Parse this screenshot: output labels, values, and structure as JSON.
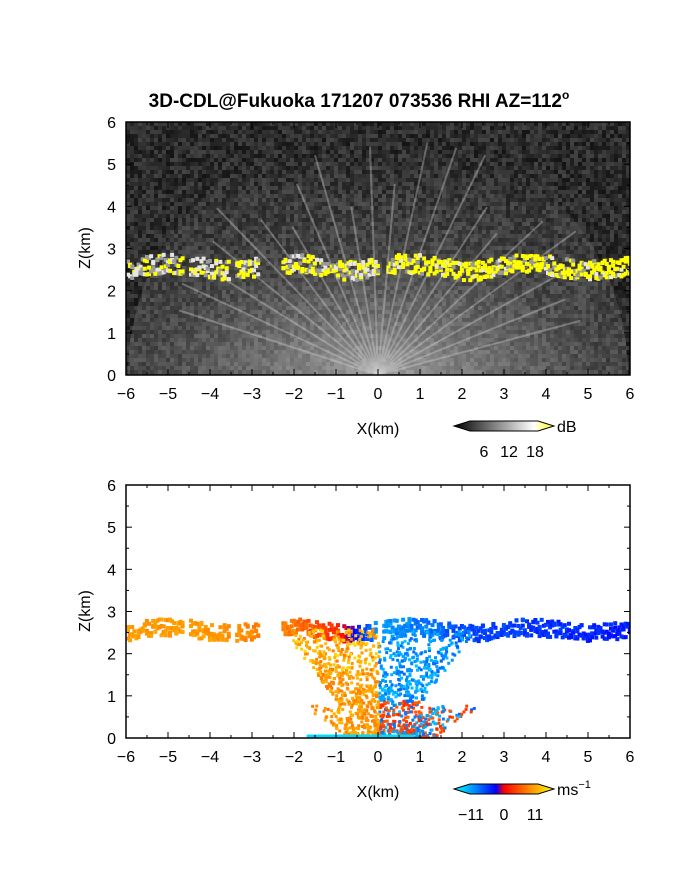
{
  "figure": {
    "title": "3D-CDL@Fukuoka 171207 073536 RHI AZ=112",
    "title_degree_mark": "o"
  },
  "chart_data": [
    {
      "type": "heatmap",
      "panel": "reflectivity",
      "xlabel": "X(km)",
      "ylabel": "Z(km)",
      "xlim": [
        -6,
        6
      ],
      "ylim": [
        0,
        6
      ],
      "xticks": [
        "−6",
        "−5",
        "−4",
        "−3",
        "−2",
        "−1",
        "0",
        "1",
        "2",
        "3",
        "4",
        "5",
        "6"
      ],
      "yticks": [
        "0",
        "1",
        "2",
        "3",
        "4",
        "5",
        "6"
      ],
      "background_color": "#2a2a2a",
      "colorbar": {
        "unit": "dB",
        "ticks": [
          "6",
          "12",
          "18"
        ],
        "range": [
          0,
          22
        ],
        "colors": [
          "#000000",
          "#ffffff",
          "#ffff00"
        ]
      },
      "layer": {
        "z_center_km": 2.6,
        "x_range_km": [
          -6,
          6
        ],
        "strong_echo_color": "#ffff00"
      }
    },
    {
      "type": "heatmap",
      "panel": "doppler_velocity",
      "xlabel": "X(km)",
      "ylabel": "Z(km)",
      "xlim": [
        -6,
        6
      ],
      "ylim": [
        0,
        6
      ],
      "xticks": [
        "−6",
        "−5",
        "−4",
        "−3",
        "−2",
        "−1",
        "0",
        "1",
        "2",
        "3",
        "4",
        "5",
        "6"
      ],
      "yticks": [
        "0",
        "1",
        "2",
        "3",
        "4",
        "5",
        "6"
      ],
      "colorbar": {
        "unit": "ms",
        "unit_exponent": "−1",
        "ticks": [
          "−11",
          "0",
          "11"
        ],
        "range": [
          -14,
          14
        ]
      },
      "layer": {
        "z_center_km": 2.6,
        "x_range_km": [
          -6,
          6
        ]
      },
      "velocity_along_layer": {
        "x": [
          -6,
          -4,
          -2,
          -1,
          0,
          1,
          2,
          4,
          6
        ],
        "v": [
          8,
          8,
          6,
          2,
          -9,
          -7,
          -5,
          -4,
          -3
        ]
      }
    }
  ]
}
